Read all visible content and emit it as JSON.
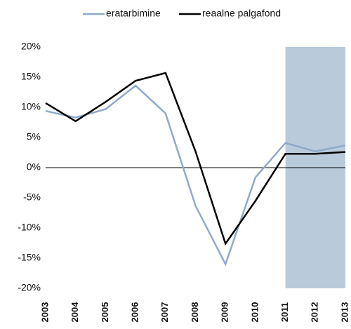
{
  "chart_data": {
    "type": "line",
    "categories": [
      "2003",
      "2004",
      "2005",
      "2006",
      "2007",
      "2008",
      "2009",
      "2010",
      "2011",
      "2012",
      "2013"
    ],
    "series": [
      {
        "name": "eratarbimine",
        "color": "#8eaacb",
        "values": [
          9.4,
          8.3,
          9.7,
          13.6,
          9.0,
          -6.3,
          -16.0,
          -1.6,
          4.1,
          2.7,
          3.7
        ]
      },
      {
        "name": "reaalne palgafond",
        "color": "#000000",
        "values": [
          10.7,
          7.7,
          10.9,
          14.4,
          15.7,
          2.7,
          -12.6,
          -5.5,
          2.3,
          2.3,
          2.6
        ]
      }
    ],
    "ylim": [
      -20,
      20
    ],
    "yticks": [
      {
        "value": -20,
        "label": "-20%"
      },
      {
        "value": -15,
        "label": "-15%"
      },
      {
        "value": -10,
        "label": "-10%"
      },
      {
        "value": -5,
        "label": "-5%"
      },
      {
        "value": 0,
        "label": "0%"
      },
      {
        "value": 5,
        "label": "5%"
      },
      {
        "value": 10,
        "label": "10%"
      },
      {
        "value": 15,
        "label": "15%"
      },
      {
        "value": 20,
        "label": "20%"
      }
    ],
    "shaded_categories": [
      "2011",
      "2013"
    ],
    "shade_color": "#b9cadb",
    "legend": "top"
  }
}
